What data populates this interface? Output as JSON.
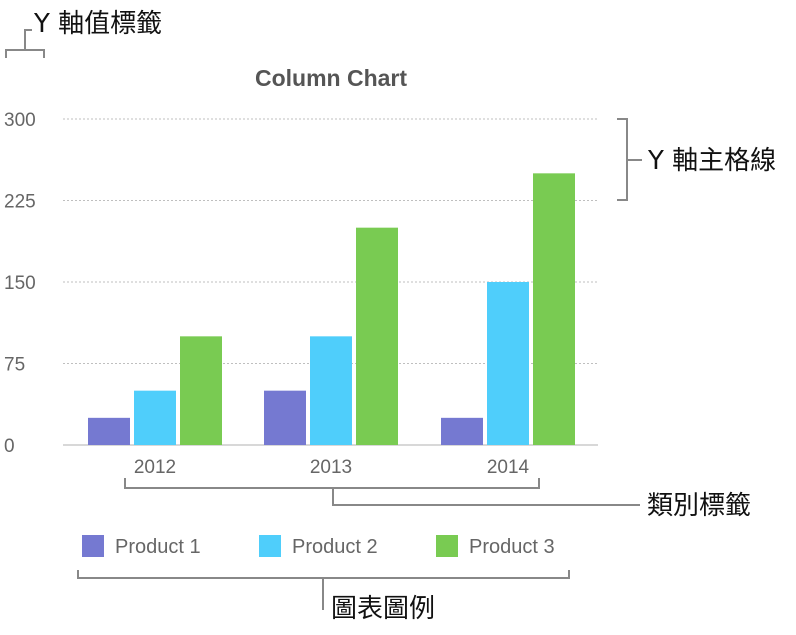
{
  "annotations": {
    "y_axis_value_labels": "Y 軸值標籤",
    "y_axis_major_gridlines": "Y 軸主格線",
    "category_labels": "類別標籤",
    "chart_legend": "圖表圖例"
  },
  "colors": {
    "product_1": "#7579d1",
    "product_2": "#4fcefb",
    "product_3": "#79cb52",
    "gridline": "#bfbfbf",
    "axis": "#cccccc",
    "bracket": "#888888"
  },
  "chart_data": {
    "type": "bar",
    "title": "Column Chart",
    "categories": [
      "2012",
      "2013",
      "2014"
    ],
    "series": [
      {
        "name": "Product 1",
        "values": [
          25,
          50,
          25
        ]
      },
      {
        "name": "Product 2",
        "values": [
          50,
          100,
          150
        ]
      },
      {
        "name": "Product 3",
        "values": [
          100,
          200,
          250
        ]
      }
    ],
    "ylim": [
      0,
      300
    ],
    "yticks": [
      "0",
      "75",
      "150",
      "225",
      "300"
    ],
    "grid": true,
    "legend_position": "bottom"
  }
}
